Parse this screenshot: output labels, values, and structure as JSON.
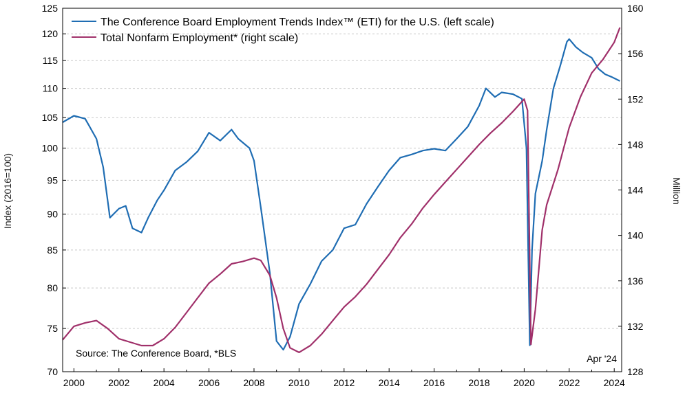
{
  "chart_data": {
    "type": "line",
    "x_ticks": [
      "2000",
      "2002",
      "2004",
      "2006",
      "2008",
      "2010",
      "2012",
      "2014",
      "2016",
      "2018",
      "2020",
      "2022",
      "2024"
    ],
    "x_range": [
      1999.5,
      2024.33
    ],
    "left_axis": {
      "label": "Index (2016=100)",
      "ticks": [
        70,
        75,
        80,
        85,
        90,
        95,
        100,
        105,
        110,
        115,
        120,
        125
      ],
      "range": [
        70,
        125
      ],
      "scale": "log"
    },
    "right_axis": {
      "label": "Million",
      "ticks": [
        128,
        132,
        136,
        140,
        144,
        148,
        152,
        156,
        160
      ],
      "range": [
        128,
        160
      ]
    },
    "grid": "horizontal dashed",
    "legend_position": "top-left",
    "series": [
      {
        "name": "The Conference Board Employment Trends Index™ (ETI) for the U.S. (left scale)",
        "axis": "left",
        "color": "#1f6db3",
        "x": [
          1999.5,
          2000.0,
          2000.5,
          2001.0,
          2001.3,
          2001.6,
          2002.0,
          2002.3,
          2002.6,
          2003.0,
          2003.3,
          2003.7,
          2004.0,
          2004.5,
          2005.0,
          2005.5,
          2006.0,
          2006.5,
          2007.0,
          2007.3,
          2007.8,
          2008.0,
          2008.3,
          2008.7,
          2009.0,
          2009.3,
          2009.6,
          2010.0,
          2010.5,
          2011.0,
          2011.5,
          2012.0,
          2012.5,
          2013.0,
          2013.5,
          2014.0,
          2014.5,
          2015.0,
          2015.5,
          2016.0,
          2016.5,
          2017.0,
          2017.5,
          2018.0,
          2018.3,
          2018.7,
          2019.0,
          2019.5,
          2019.9,
          2020.1,
          2020.25,
          2020.35,
          2020.5,
          2020.8,
          2021.0,
          2021.3,
          2021.6,
          2021.9,
          2022.0,
          2022.3,
          2022.6,
          2023.0,
          2023.3,
          2023.6,
          2023.9,
          2024.25
        ],
        "y": [
          104.2,
          105.3,
          104.8,
          101.5,
          97.0,
          89.5,
          90.8,
          91.2,
          88.0,
          87.4,
          89.5,
          92.0,
          93.5,
          96.5,
          97.8,
          99.5,
          102.5,
          101.2,
          103.0,
          101.5,
          100.0,
          98.0,
          91.0,
          82.0,
          73.5,
          72.5,
          74.0,
          78.0,
          80.5,
          83.5,
          85.0,
          88.0,
          88.5,
          91.5,
          94.0,
          96.5,
          98.5,
          99.0,
          99.6,
          99.9,
          99.6,
          101.5,
          103.5,
          107.0,
          110.0,
          108.5,
          109.3,
          109.0,
          108.2,
          100.0,
          73.0,
          85.0,
          93.0,
          98.0,
          103.0,
          110.0,
          114.0,
          118.5,
          119.0,
          117.5,
          116.5,
          115.5,
          113.5,
          112.5,
          112.0,
          111.3
        ]
      },
      {
        "name": "Total Nonfarm Employment* (right scale)",
        "axis": "right",
        "color": "#a0306a",
        "x": [
          1999.5,
          2000.0,
          2000.5,
          2001.0,
          2001.5,
          2002.0,
          2002.5,
          2003.0,
          2003.5,
          2004.0,
          2004.5,
          2005.0,
          2005.5,
          2006.0,
          2006.5,
          2007.0,
          2007.5,
          2008.0,
          2008.3,
          2008.7,
          2009.0,
          2009.3,
          2009.6,
          2010.0,
          2010.5,
          2011.0,
          2011.5,
          2012.0,
          2012.5,
          2013.0,
          2013.5,
          2014.0,
          2014.5,
          2015.0,
          2015.5,
          2016.0,
          2016.5,
          2017.0,
          2017.5,
          2018.0,
          2018.5,
          2019.0,
          2019.5,
          2020.0,
          2020.15,
          2020.3,
          2020.5,
          2020.8,
          2021.0,
          2021.5,
          2022.0,
          2022.5,
          2023.0,
          2023.5,
          2024.0,
          2024.25
        ],
        "y": [
          130.8,
          132.0,
          132.3,
          132.5,
          131.8,
          130.9,
          130.6,
          130.3,
          130.3,
          130.9,
          131.9,
          133.2,
          134.5,
          135.8,
          136.6,
          137.5,
          137.7,
          138.0,
          137.8,
          136.5,
          134.5,
          131.8,
          130.1,
          129.7,
          130.3,
          131.3,
          132.5,
          133.7,
          134.6,
          135.7,
          137.0,
          138.3,
          139.8,
          141.0,
          142.4,
          143.6,
          144.7,
          145.8,
          146.9,
          148.0,
          149.0,
          149.9,
          150.9,
          152.0,
          151.0,
          130.4,
          133.5,
          140.5,
          142.7,
          145.8,
          149.5,
          152.2,
          154.3,
          155.5,
          157.0,
          158.3
        ]
      }
    ],
    "annotations": [
      "Source: The Conference Board, *BLS",
      "Apr '24"
    ]
  }
}
